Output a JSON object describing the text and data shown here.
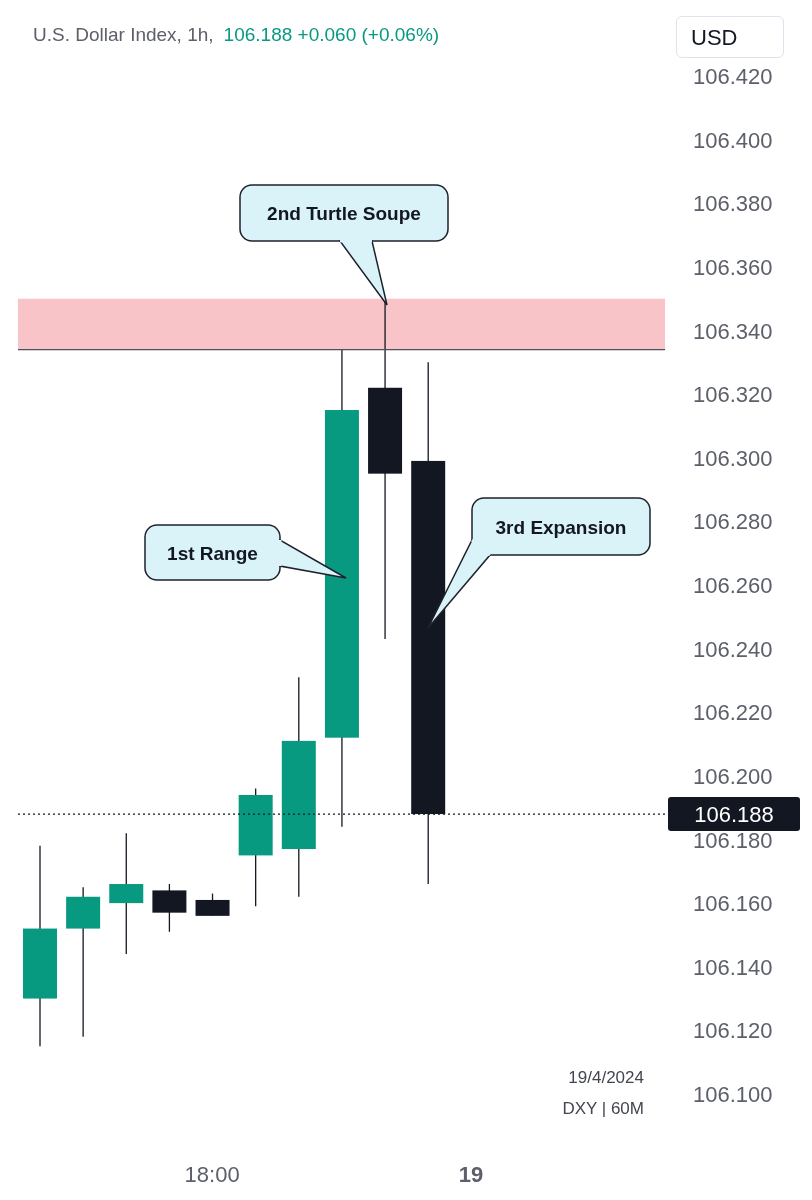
{
  "chart_data": {
    "type": "candlestick",
    "title": "U.S. Dollar Index, 1h,",
    "subtitle": "106.188  +0.060 (+0.06%)",
    "categories": [
      null,
      null,
      null,
      null,
      "18:00",
      null,
      null,
      null,
      null,
      null,
      "19",
      null,
      null,
      null,
      null
    ],
    "ohlc": [
      [
        106.13,
        106.178,
        106.115,
        106.152
      ],
      [
        106.152,
        106.165,
        106.118,
        106.162
      ],
      [
        106.16,
        106.182,
        106.144,
        106.166
      ],
      [
        106.164,
        106.166,
        106.151,
        106.157
      ],
      [
        106.161,
        106.163,
        106.156,
        106.156
      ],
      [
        106.175,
        106.196,
        106.159,
        106.194
      ],
      [
        106.177,
        106.231,
        106.162,
        106.211
      ],
      [
        106.212,
        106.334,
        106.184,
        106.315
      ],
      [
        106.322,
        106.349,
        106.243,
        106.295
      ],
      [
        106.299,
        106.33,
        106.166,
        106.188
      ],
      null,
      null,
      null,
      null,
      null
    ],
    "colors": [
      "#089981",
      "#089981",
      "#089981",
      "#131722",
      "#131722",
      "#089981",
      "#089981",
      "#089981",
      "#131722",
      "#131722",
      null,
      null,
      null,
      null,
      null
    ],
    "ylim": [
      106.1,
      106.42
    ],
    "yticks": [
      {
        "value": 106.1,
        "label": "106.100"
      },
      {
        "value": 106.12,
        "label": "106.120"
      },
      {
        "value": 106.14,
        "label": "106.140"
      },
      {
        "value": 106.16,
        "label": "106.160"
      },
      {
        "value": 106.18,
        "label": "106.180"
      },
      {
        "value": 106.2,
        "label": "106.200"
      },
      {
        "value": 106.22,
        "label": "106.220"
      },
      {
        "value": 106.24,
        "label": "106.240"
      },
      {
        "value": 106.26,
        "label": "106.260"
      },
      {
        "value": 106.28,
        "label": "106.280"
      },
      {
        "value": 106.3,
        "label": "106.300"
      },
      {
        "value": 106.32,
        "label": "106.320"
      },
      {
        "value": 106.34,
        "label": "106.340"
      },
      {
        "value": 106.36,
        "label": "106.360"
      },
      {
        "value": 106.38,
        "label": "106.380"
      },
      {
        "value": 106.4,
        "label": "106.400"
      },
      {
        "value": 106.42,
        "label": "106.420"
      }
    ],
    "ref_lines": [
      {
        "axis": "y",
        "value": 106.188,
        "label": "106.188",
        "color": "#131722",
        "line_style": "dotted"
      },
      {
        "axis": "y",
        "value": 106.334,
        "color": "#4a4f5c",
        "line_style": "solid"
      }
    ],
    "bands": [
      {
        "axis": "y",
        "from": 106.334,
        "to": 106.35,
        "color": "#f8c4c8"
      }
    ],
    "annotations": [
      "2nd Turtle Soupe",
      "1st Range",
      "3rd Expansion",
      "USD",
      "19/4/2024",
      "DXY | 60M"
    ]
  }
}
